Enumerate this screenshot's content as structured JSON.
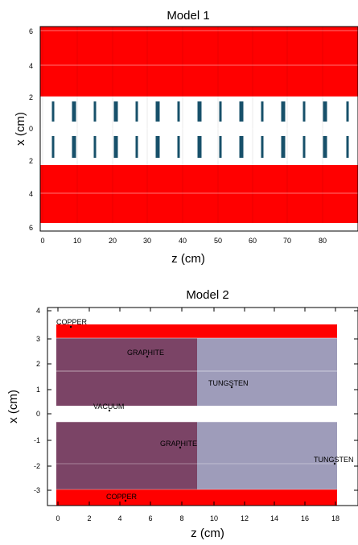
{
  "model1": {
    "title": "Model 1",
    "xlabel": "z (cm)",
    "ylabel": "x (cm)",
    "x_ticks": [
      "0",
      "10",
      "20",
      "30",
      "40",
      "50",
      "60",
      "70",
      "80"
    ],
    "y_ticks": [
      "6",
      "4",
      "2",
      "0",
      "2",
      "4",
      "6"
    ],
    "colors": {
      "wall": "#ff0000",
      "aperture": "#17506a",
      "background": "#ffffff"
    }
  },
  "model2": {
    "title": "Model 2",
    "xlabel": "z (cm)",
    "ylabel": "x (cm)",
    "x_ticks": [
      "0",
      "2",
      "4",
      "6",
      "8",
      "10",
      "12",
      "14",
      "16",
      "18"
    ],
    "y_ticks": [
      "4",
      "3",
      "2",
      "1",
      "0",
      "-1",
      "-2",
      "-3"
    ],
    "labels": {
      "copper_top": "COPPER",
      "graphite_top": "GRAPHITE",
      "tungsten_top": "TUNGSTEN",
      "vacuum": "VACUUM",
      "graphite_bottom": "GRAPHITE",
      "tungsten_bottom": "TUNGSTEN",
      "copper_bottom": "COPPER"
    },
    "colors": {
      "copper": "#ff0000",
      "graphite": "#7b4466",
      "tungsten": "#9e9cba",
      "background": "#ffffff"
    }
  }
}
